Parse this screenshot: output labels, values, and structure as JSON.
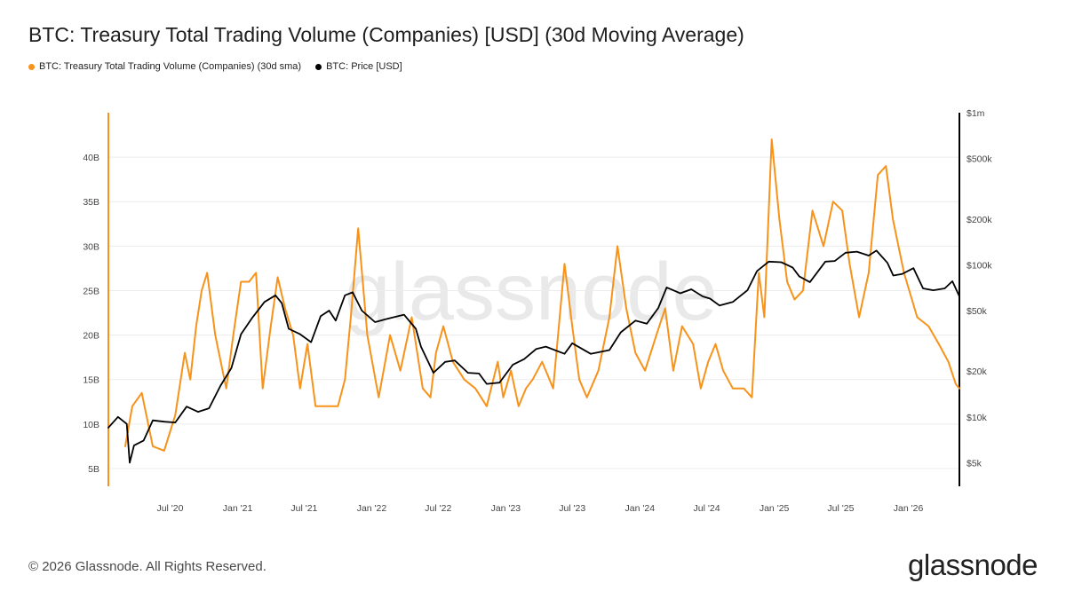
{
  "header": {
    "title": "BTC: Treasury Total Trading Volume (Companies) [USD] (30d Moving Average)"
  },
  "legend": [
    {
      "label": "BTC: Treasury Total Trading Volume (Companies) (30d sma)",
      "color": "#f7931a"
    },
    {
      "label": "BTC: Price [USD]",
      "color": "#000000"
    }
  ],
  "footer": {
    "copyright": "© 2026 Glassnode. All Rights Reserved.",
    "brand": "glassnode",
    "watermark": "glassnode"
  },
  "chart_data": {
    "type": "line",
    "title": "BTC: Treasury Total Trading Volume (Companies) [USD] (30d Moving Average)",
    "x_range": [
      "2020-01-15",
      "2026-05-20"
    ],
    "x_ticks": [
      "Jul '20",
      "Jan '21",
      "Jul '21",
      "Jan '22",
      "Jul '22",
      "Jan '23",
      "Jul '23",
      "Jan '24",
      "Jul '24",
      "Jan '25",
      "Jul '25",
      "Jan '26"
    ],
    "y_left": {
      "ylim": [
        3,
        45
      ],
      "ticks": [
        5,
        10,
        15,
        20,
        25,
        30,
        35,
        40
      ],
      "tick_labels": [
        "5B",
        "10B",
        "15B",
        "20B",
        "25B",
        "30B",
        "35B",
        "40B"
      ],
      "unit": "B USD"
    },
    "y_right": {
      "scale": "log",
      "ylim": [
        3500,
        1000000
      ],
      "ticks": [
        5000,
        10000,
        20000,
        50000,
        100000,
        200000,
        500000,
        1000000
      ],
      "tick_labels": [
        "$5k",
        "$10k",
        "$20k",
        "$50k",
        "$100k",
        "$200k",
        "$500k",
        "$1m"
      ]
    },
    "grid": true,
    "legend_position": "top-left",
    "series": [
      {
        "name": "BTC: Treasury Total Trading Volume (Companies) (30d sma)",
        "axis": "left",
        "color": "#f7931a",
        "x": [
          "2020-03-01",
          "2020-03-20",
          "2020-04-15",
          "2020-05-15",
          "2020-06-15",
          "2020-07-15",
          "2020-08-10",
          "2020-08-25",
          "2020-09-10",
          "2020-09-25",
          "2020-10-10",
          "2020-11-01",
          "2020-12-01",
          "2020-12-20",
          "2021-01-10",
          "2021-02-01",
          "2021-02-20",
          "2021-03-10",
          "2021-04-01",
          "2021-04-20",
          "2021-05-10",
          "2021-06-01",
          "2021-06-20",
          "2021-07-10",
          "2021-08-01",
          "2021-09-01",
          "2021-10-01",
          "2021-10-20",
          "2021-11-05",
          "2021-11-25",
          "2021-12-20",
          "2022-01-20",
          "2022-02-20",
          "2022-03-20",
          "2022-04-20",
          "2022-05-20",
          "2022-06-10",
          "2022-06-25",
          "2022-07-15",
          "2022-08-10",
          "2022-09-10",
          "2022-10-10",
          "2022-11-10",
          "2022-12-10",
          "2022-12-25",
          "2023-01-15",
          "2023-02-05",
          "2023-02-25",
          "2023-03-15",
          "2023-04-10",
          "2023-05-10",
          "2023-06-10",
          "2023-07-01",
          "2023-07-20",
          "2023-08-10",
          "2023-09-10",
          "2023-10-10",
          "2023-11-01",
          "2023-11-25",
          "2023-12-20",
          "2024-01-15",
          "2024-02-15",
          "2024-03-10",
          "2024-04-01",
          "2024-04-25",
          "2024-05-25",
          "2024-06-15",
          "2024-07-05",
          "2024-07-25",
          "2024-08-15",
          "2024-09-10",
          "2024-10-10",
          "2024-11-01",
          "2024-11-20",
          "2024-12-05",
          "2024-12-25",
          "2025-01-15",
          "2025-02-05",
          "2025-02-25",
          "2025-03-20",
          "2025-04-15",
          "2025-05-15",
          "2025-06-10",
          "2025-07-05",
          "2025-07-25",
          "2025-08-20",
          "2025-09-15",
          "2025-10-10",
          "2025-11-01",
          "2025-11-20",
          "2025-12-20",
          "2026-01-25",
          "2026-02-25",
          "2026-03-25",
          "2026-04-20",
          "2026-05-10",
          "2026-05-20"
        ],
        "values": [
          7.5,
          12,
          13.5,
          7.5,
          7,
          11,
          18,
          15,
          21,
          25,
          27,
          20,
          14,
          20,
          26,
          26,
          27,
          14,
          21,
          26.5,
          23,
          20,
          14,
          19,
          12,
          12,
          12,
          15,
          22,
          32,
          20,
          13,
          20,
          16,
          22,
          14,
          13,
          18,
          21,
          17,
          15,
          14,
          12,
          17,
          13,
          16,
          12,
          14,
          15,
          17,
          14,
          28,
          21,
          15,
          13,
          16,
          22,
          30,
          23,
          18,
          16,
          20,
          23,
          16,
          21,
          19,
          14,
          17,
          19,
          16,
          14,
          14,
          13,
          27,
          22,
          42,
          33,
          26,
          24,
          25,
          34,
          30,
          35,
          34,
          28,
          22,
          27,
          38,
          39,
          33,
          27,
          22,
          21,
          19,
          17,
          14.5,
          14
        ]
      },
      {
        "name": "BTC: Price [USD]",
        "axis": "right",
        "color": "#000000",
        "x": [
          "2020-01-15",
          "2020-02-10",
          "2020-03-05",
          "2020-03-13",
          "2020-03-25",
          "2020-04-20",
          "2020-05-15",
          "2020-06-15",
          "2020-07-15",
          "2020-08-15",
          "2020-09-15",
          "2020-10-15",
          "2020-11-15",
          "2020-12-15",
          "2021-01-10",
          "2021-02-10",
          "2021-03-15",
          "2021-04-14",
          "2021-05-01",
          "2021-05-20",
          "2021-06-20",
          "2021-07-20",
          "2021-08-15",
          "2021-09-07",
          "2021-09-25",
          "2021-10-20",
          "2021-11-10",
          "2021-12-05",
          "2022-01-10",
          "2022-02-10",
          "2022-03-30",
          "2022-05-01",
          "2022-05-15",
          "2022-06-18",
          "2022-07-20",
          "2022-08-15",
          "2022-09-20",
          "2022-10-20",
          "2022-11-10",
          "2022-12-15",
          "2023-01-20",
          "2023-02-20",
          "2023-03-25",
          "2023-04-20",
          "2023-06-10",
          "2023-07-01",
          "2023-08-20",
          "2023-10-10",
          "2023-11-10",
          "2023-12-20",
          "2024-01-20",
          "2024-02-20",
          "2024-03-14",
          "2024-04-20",
          "2024-05-20",
          "2024-06-20",
          "2024-07-10",
          "2024-08-05",
          "2024-09-10",
          "2024-10-20",
          "2024-11-15",
          "2024-12-17",
          "2025-01-20",
          "2025-02-20",
          "2025-03-10",
          "2025-04-08",
          "2025-05-20",
          "2025-06-15",
          "2025-07-14",
          "2025-08-14",
          "2025-09-15",
          "2025-10-06",
          "2025-11-05",
          "2025-11-21",
          "2025-12-15",
          "2026-01-15",
          "2026-02-10",
          "2026-03-10",
          "2026-04-10",
          "2026-05-01",
          "2026-05-20"
        ],
        "values": [
          8500,
          10000,
          9000,
          5000,
          6500,
          7000,
          9500,
          9300,
          9200,
          11700,
          10800,
          11400,
          16000,
          21000,
          35000,
          45000,
          57000,
          63000,
          56000,
          38000,
          35000,
          31000,
          46000,
          50000,
          43000,
          63000,
          66000,
          50000,
          42000,
          44000,
          47000,
          38000,
          29000,
          19500,
          23000,
          23500,
          19500,
          19300,
          16500,
          16800,
          22000,
          24000,
          28000,
          29000,
          26000,
          30500,
          26000,
          27500,
          36000,
          43000,
          41000,
          52000,
          71000,
          65000,
          69000,
          62000,
          60000,
          54000,
          57000,
          68000,
          91000,
          105000,
          104000,
          96000,
          84000,
          77000,
          105000,
          106000,
          120000,
          122000,
          115000,
          124000,
          103000,
          85000,
          87000,
          95000,
          70000,
          68000,
          70000,
          78000,
          62000
        ]
      }
    ]
  }
}
